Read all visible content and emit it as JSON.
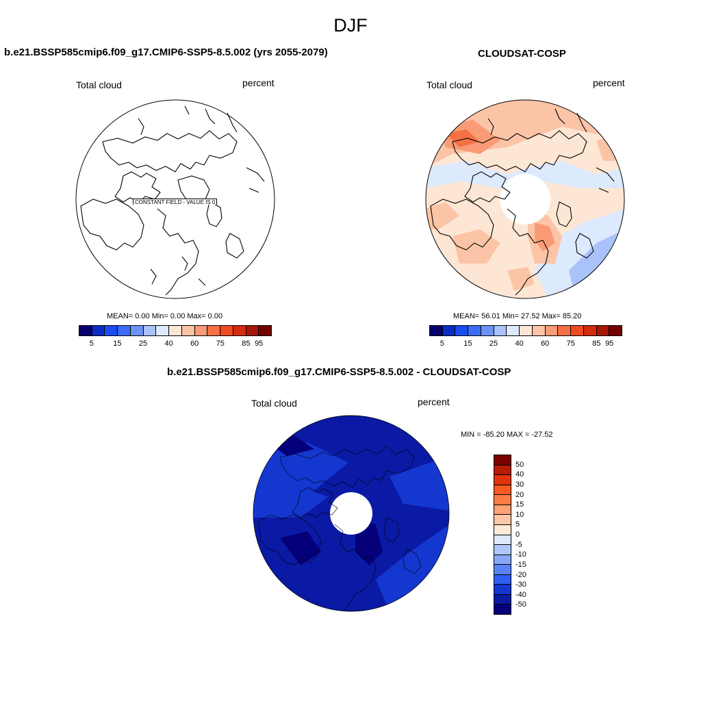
{
  "title": "DJF",
  "panels": {
    "model": {
      "title": "b.e21.BSSP585cmip6.f09_g17.CMIP6-SSP5-8.5.002 (yrs 2055-2079)",
      "variable": "Total cloud",
      "units": "percent",
      "constant_label": "CONSTANT FIELD - VALUE IS 0",
      "stats": "MEAN=   0.00  Min=   0.00  Max=   0.00"
    },
    "obs": {
      "title": "CLOUDSAT-COSP",
      "variable": "Total cloud",
      "units": "percent",
      "stats": "MEAN=  56.01  Min=  27.52  Max=  85.20"
    },
    "diff": {
      "title": "b.e21.BSSP585cmip6.f09_g17.CMIP6-SSP5-8.5.002 - CLOUDSAT-COSP",
      "variable": "Total cloud",
      "units": "percent",
      "minmax": "MIN = -85.20 MAX = -27.52"
    }
  },
  "colorbar_abs": {
    "ticks": [
      "5",
      "15",
      "25",
      "40",
      "60",
      "75",
      "85",
      "95"
    ],
    "colors": [
      "#08006b",
      "#0a2dc4",
      "#1a4df0",
      "#3c6cf5",
      "#6b93f5",
      "#a9c3fa",
      "#dde9fc",
      "#fde7d4",
      "#fcc4a6",
      "#f99b76",
      "#f57145",
      "#ef4a20",
      "#d42b0f",
      "#a81607",
      "#730000"
    ]
  },
  "colorbar_diff": {
    "ticks": [
      "50",
      "40",
      "30",
      "20",
      "15",
      "10",
      "5",
      "0",
      "-5",
      "-10",
      "-15",
      "-20",
      "-30",
      "-40",
      "-50"
    ],
    "colors": [
      "#7a0000",
      "#b51c06",
      "#e0330e",
      "#f85a22",
      "#fa7d46",
      "#fca277",
      "#fdc7a7",
      "#fde9d8",
      "#dde9fc",
      "#aec7fa",
      "#86a6f6",
      "#5983f4",
      "#2f5ff2",
      "#1437d0",
      "#0a1aa5",
      "#05007a"
    ]
  }
}
